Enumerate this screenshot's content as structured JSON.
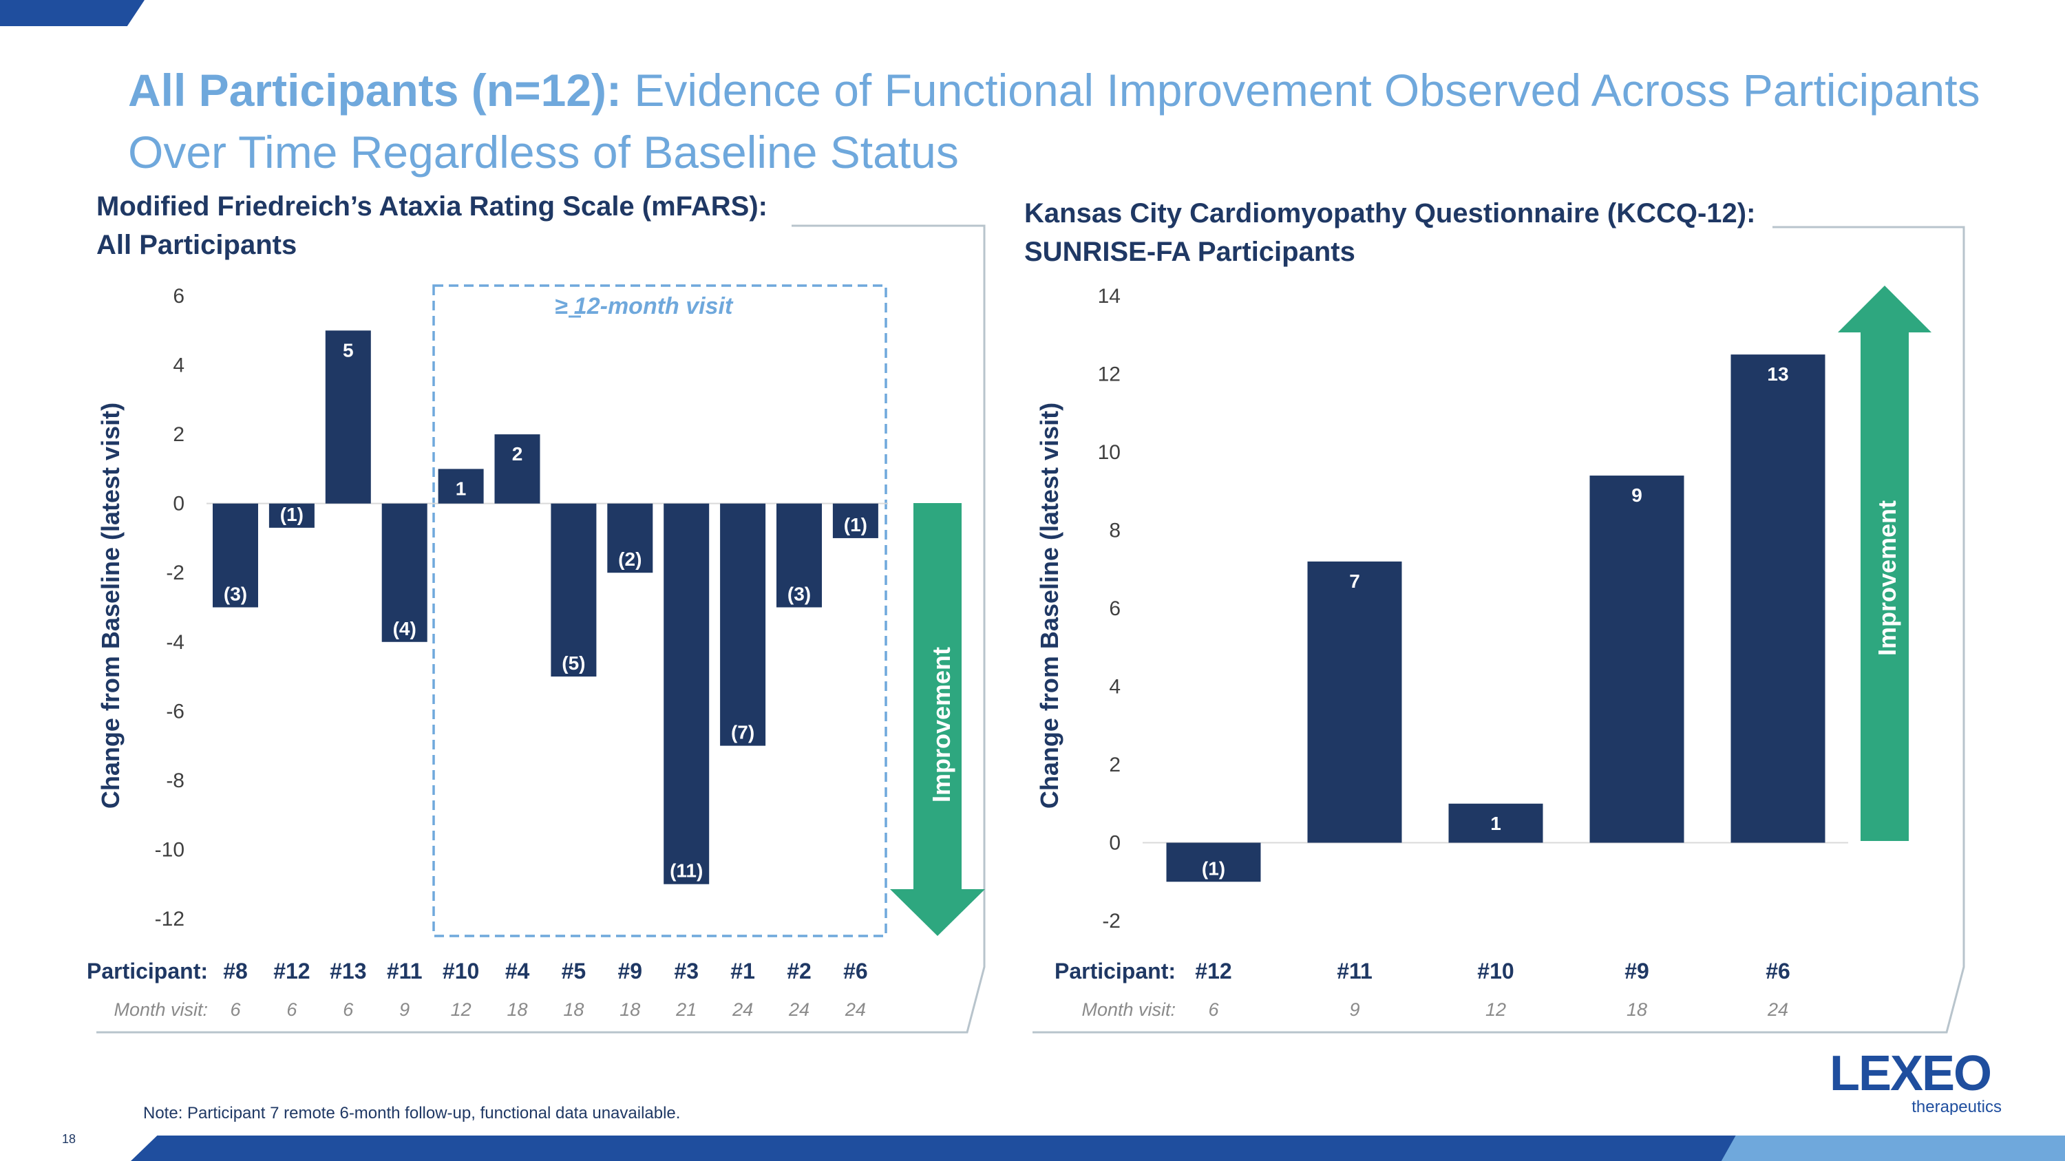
{
  "title": {
    "bold": "All Participants (n=12):",
    "rest": " Evidence of Functional Improvement Observed Across Participants Over Time Regardless of Baseline Status"
  },
  "colors": {
    "bar": "#1f3864",
    "arrow": "#2ea77f",
    "accent": "#6fa8dc",
    "footer": "#1f4e9e"
  },
  "chart_data": [
    {
      "type": "bar",
      "title_line1": "Modified Friedreich’s Ataxia Rating Scale (mFARS):",
      "title_line2": "All Participants",
      "ylabel": "Change from Baseline (latest visit)",
      "ylim": [
        -12,
        6
      ],
      "yticks": [
        6,
        4,
        2,
        0,
        -2,
        -4,
        -6,
        -8,
        -10,
        -12
      ],
      "row_label_participant": "Participant:",
      "row_label_month": "Month visit:",
      "categories": [
        "#8",
        "#12",
        "#13",
        "#11",
        "#10",
        "#4",
        "#5",
        "#9",
        "#3",
        "#1",
        "#2",
        "#6"
      ],
      "months": [
        "6",
        "6",
        "6",
        "9",
        "12",
        "18",
        "18",
        "18",
        "21",
        "24",
        "24",
        "24"
      ],
      "values": [
        -3,
        -0.7,
        5,
        -4,
        1,
        2,
        -5,
        -2,
        -11,
        -7,
        -3,
        -1
      ],
      "labels": [
        "(3)",
        "(1)",
        "5",
        "(4)",
        "1",
        "2",
        "(5)",
        "(2)",
        "(11)",
        "(7)",
        "(3)",
        "(1)"
      ],
      "annotation": "≥ 12-month visit",
      "arrow_label": "Improvement",
      "arrow_direction": "down"
    },
    {
      "type": "bar",
      "title_line1": "Kansas City Cardiomyopathy Questionnaire (KCCQ-12):",
      "title_line2": "SUNRISE-FA Participants",
      "ylabel": "Change from Baseline (latest visit)",
      "ylim": [
        -2,
        14
      ],
      "yticks": [
        14,
        12,
        10,
        8,
        6,
        4,
        2,
        0,
        -2
      ],
      "row_label_participant": "Participant:",
      "row_label_month": "Month visit:",
      "categories": [
        "#12",
        "#11",
        "#10",
        "#9",
        "#6"
      ],
      "months": [
        "6",
        "9",
        "12",
        "18",
        "24"
      ],
      "values": [
        -1,
        7.2,
        1,
        9.4,
        12.5
      ],
      "labels": [
        "(1)",
        "7",
        "1",
        "9",
        "13"
      ],
      "arrow_label": "Improvement",
      "arrow_direction": "up"
    }
  ],
  "note": "Note: Participant 7 remote 6-month follow-up, functional data unavailable.",
  "page_number": "18",
  "logo": {
    "main": "LEXEO",
    "sub": "therapeutics"
  }
}
